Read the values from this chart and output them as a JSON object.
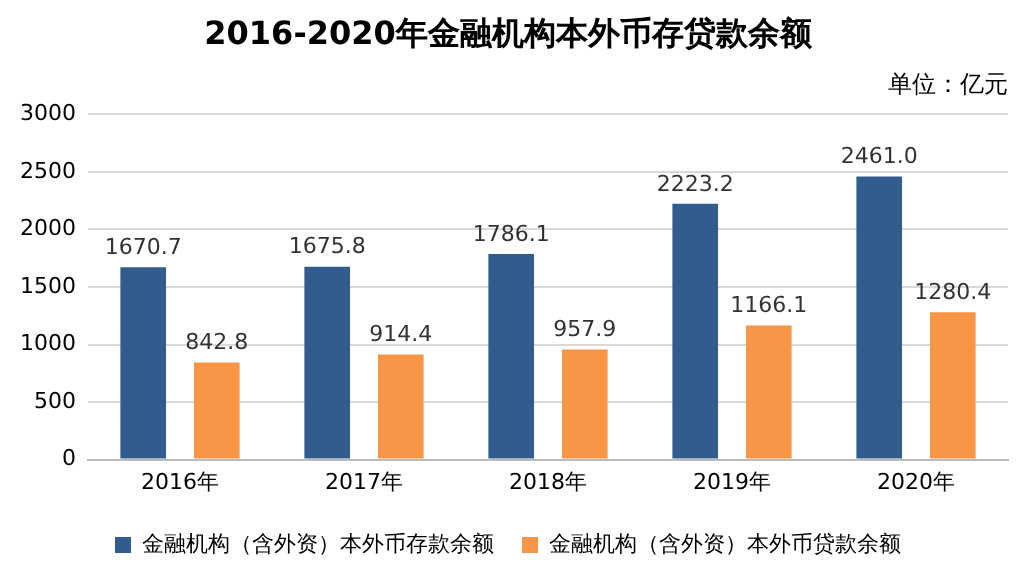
{
  "chart_data": {
    "type": "bar",
    "title": "2016-2020年金融机构本外币存贷款余额",
    "annotations": [
      "单位：亿元"
    ],
    "categories": [
      "2016年",
      "2017年",
      "2018年",
      "2019年",
      "2020年"
    ],
    "series": [
      {
        "name": "金融机构（含外资）本外币存款余额",
        "color": "#335c8e",
        "values": [
          1670.7,
          1675.8,
          1786.1,
          2223.2,
          2461.0
        ],
        "value_labels": [
          "1670.7",
          "1675.8",
          "1786.1",
          "2223.2",
          "2461.0"
        ]
      },
      {
        "name": "金融机构（含外资）本外币贷款余额",
        "color": "#f79646",
        "values": [
          842.8,
          914.4,
          957.9,
          1166.1,
          1280.4
        ],
        "value_labels": [
          "842.8",
          "914.4",
          "957.9",
          "1166.1",
          "1280.4"
        ]
      }
    ],
    "ylim": [
      0,
      3000
    ],
    "yticks": [
      0,
      500,
      1000,
      1500,
      2000,
      2500,
      3000
    ],
    "grid": "y",
    "legend": "bottom"
  }
}
